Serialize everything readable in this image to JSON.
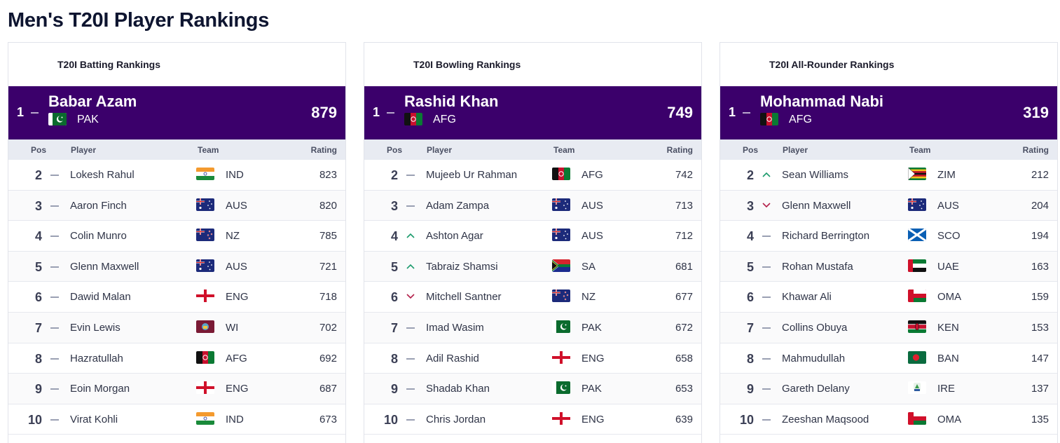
{
  "page": {
    "title": "Men's T20I Player Rankings"
  },
  "columns": {
    "pos": "Pos",
    "player": "Player",
    "team": "Team",
    "rating": "Rating"
  },
  "colors": {
    "leader_bg": "#3b006b",
    "up": "#1a9a6b",
    "down": "#b3204a",
    "same": "#9aa0b3"
  },
  "panels": [
    {
      "title": "T20I Batting Rankings",
      "leader": {
        "pos": "1",
        "movement": "same",
        "name": "Babar Azam",
        "team": "PAK",
        "flag": "pak-flag",
        "rating": "879"
      },
      "rows": [
        {
          "pos": "2",
          "movement": "same",
          "name": "Lokesh Rahul",
          "team": "IND",
          "flag": "ind-flag",
          "rating": "823"
        },
        {
          "pos": "3",
          "movement": "same",
          "name": "Aaron Finch",
          "team": "AUS",
          "flag": "aus-flag",
          "rating": "820"
        },
        {
          "pos": "4",
          "movement": "same",
          "name": "Colin Munro",
          "team": "NZ",
          "flag": "nz-flag",
          "rating": "785"
        },
        {
          "pos": "5",
          "movement": "same",
          "name": "Glenn Maxwell",
          "team": "AUS",
          "flag": "aus-flag",
          "rating": "721"
        },
        {
          "pos": "6",
          "movement": "same",
          "name": "Dawid Malan",
          "team": "ENG",
          "flag": "eng-flag",
          "rating": "718"
        },
        {
          "pos": "7",
          "movement": "same",
          "name": "Evin Lewis",
          "team": "WI",
          "flag": "wi-flag",
          "rating": "702"
        },
        {
          "pos": "8",
          "movement": "same",
          "name": "Hazratullah",
          "team": "AFG",
          "flag": "afg-flag",
          "rating": "692"
        },
        {
          "pos": "9",
          "movement": "same",
          "name": "Eoin Morgan",
          "team": "ENG",
          "flag": "eng-flag",
          "rating": "687"
        },
        {
          "pos": "10",
          "movement": "same",
          "name": "Virat Kohli",
          "team": "IND",
          "flag": "ind-flag",
          "rating": "673"
        }
      ]
    },
    {
      "title": "T20I Bowling Rankings",
      "leader": {
        "pos": "1",
        "movement": "same",
        "name": "Rashid Khan",
        "team": "AFG",
        "flag": "afg-flag",
        "rating": "749"
      },
      "rows": [
        {
          "pos": "2",
          "movement": "same",
          "name": "Mujeeb Ur Rahman",
          "team": "AFG",
          "flag": "afg-flag",
          "rating": "742"
        },
        {
          "pos": "3",
          "movement": "same",
          "name": "Adam Zampa",
          "team": "AUS",
          "flag": "aus-flag",
          "rating": "713"
        },
        {
          "pos": "4",
          "movement": "up",
          "name": "Ashton Agar",
          "team": "AUS",
          "flag": "aus-flag",
          "rating": "712"
        },
        {
          "pos": "5",
          "movement": "up",
          "name": "Tabraiz Shamsi",
          "team": "SA",
          "flag": "sa-flag",
          "rating": "681"
        },
        {
          "pos": "6",
          "movement": "down",
          "name": "Mitchell Santner",
          "team": "NZ",
          "flag": "nz-flag",
          "rating": "677"
        },
        {
          "pos": "7",
          "movement": "same",
          "name": "Imad Wasim",
          "team": "PAK",
          "flag": "pak-flag",
          "rating": "672"
        },
        {
          "pos": "8",
          "movement": "same",
          "name": "Adil Rashid",
          "team": "ENG",
          "flag": "eng-flag",
          "rating": "658"
        },
        {
          "pos": "9",
          "movement": "same",
          "name": "Shadab Khan",
          "team": "PAK",
          "flag": "pak-flag",
          "rating": "653"
        },
        {
          "pos": "10",
          "movement": "same",
          "name": "Chris Jordan",
          "team": "ENG",
          "flag": "eng-flag",
          "rating": "639"
        }
      ]
    },
    {
      "title": "T20I All-Rounder Rankings",
      "leader": {
        "pos": "1",
        "movement": "same",
        "name": "Mohammad Nabi",
        "team": "AFG",
        "flag": "afg-flag",
        "rating": "319"
      },
      "rows": [
        {
          "pos": "2",
          "movement": "up",
          "name": "Sean Williams",
          "team": "ZIM",
          "flag": "zim-flag",
          "rating": "212"
        },
        {
          "pos": "3",
          "movement": "down",
          "name": "Glenn Maxwell",
          "team": "AUS",
          "flag": "aus-flag",
          "rating": "204"
        },
        {
          "pos": "4",
          "movement": "same",
          "name": "Richard Berrington",
          "team": "SCO",
          "flag": "sco-flag",
          "rating": "194"
        },
        {
          "pos": "5",
          "movement": "same",
          "name": "Rohan Mustafa",
          "team": "UAE",
          "flag": "uae-flag",
          "rating": "163"
        },
        {
          "pos": "6",
          "movement": "same",
          "name": "Khawar Ali",
          "team": "OMA",
          "flag": "oma-flag",
          "rating": "159"
        },
        {
          "pos": "7",
          "movement": "same",
          "name": "Collins Obuya",
          "team": "KEN",
          "flag": "ken-flag",
          "rating": "153"
        },
        {
          "pos": "8",
          "movement": "same",
          "name": "Mahmudullah",
          "team": "BAN",
          "flag": "ban-flag",
          "rating": "147"
        },
        {
          "pos": "9",
          "movement": "same",
          "name": "Gareth Delany",
          "team": "IRE",
          "flag": "ire-flag",
          "rating": "137"
        },
        {
          "pos": "10",
          "movement": "same",
          "name": "Zeeshan Maqsood",
          "team": "OMA",
          "flag": "oma-flag",
          "rating": "135"
        }
      ]
    }
  ]
}
